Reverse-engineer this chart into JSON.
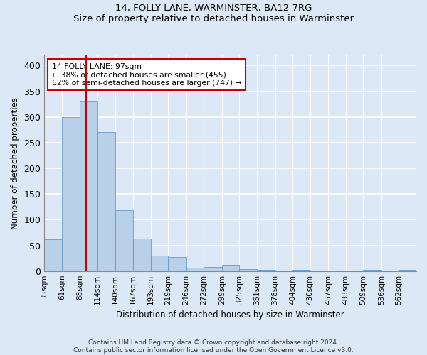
{
  "title": "14, FOLLY LANE, WARMINSTER, BA12 7RG",
  "subtitle": "Size of property relative to detached houses in Warminster",
  "xlabel": "Distribution of detached houses by size in Warminster",
  "ylabel": "Number of detached properties",
  "property_size": 97,
  "annotation_line1": "14 FOLLY LANE: 97sqm",
  "annotation_line2": "← 38% of detached houses are smaller (455)",
  "annotation_line3": "62% of semi-detached houses are larger (747) →",
  "bar_color": "#b8d0e8",
  "bar_edge_color": "#6699cc",
  "vline_color": "#cc0000",
  "annotation_box_facecolor": "#ffffff",
  "annotation_box_edgecolor": "#cc0000",
  "background_color": "#dce8f5",
  "plot_bg_color": "#dce8f5",
  "grid_color": "#ffffff",
  "footer": "Contains HM Land Registry data © Crown copyright and database right 2024.\nContains public sector information licensed under the Open Government Licence v3.0.",
  "bin_edges": [
    35,
    61,
    88,
    114,
    140,
    167,
    193,
    219,
    246,
    272,
    299,
    325,
    351,
    378,
    404,
    430,
    457,
    483,
    509,
    536,
    562,
    588
  ],
  "bin_labels": [
    "35sqm",
    "61sqm",
    "88sqm",
    "114sqm",
    "140sqm",
    "167sqm",
    "193sqm",
    "219sqm",
    "246sqm",
    "272sqm",
    "299sqm",
    "325sqm",
    "351sqm",
    "378sqm",
    "404sqm",
    "430sqm",
    "457sqm",
    "483sqm",
    "509sqm",
    "536sqm",
    "562sqm"
  ],
  "counts": [
    62,
    300,
    332,
    270,
    118,
    63,
    30,
    27,
    7,
    8,
    12,
    4,
    3,
    0,
    3,
    0,
    0,
    0,
    2,
    0,
    2
  ],
  "ylim": [
    0,
    420
  ],
  "yticks": [
    0,
    50,
    100,
    150,
    200,
    250,
    300,
    350,
    400
  ]
}
